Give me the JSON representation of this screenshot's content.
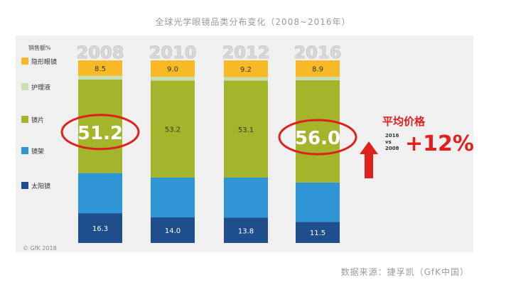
{
  "title": "全球光学眼镜品类分布变化（2008~2016年）",
  "source": "数据来源：捷孚凯（GfK中国）",
  "copyright": "© GfK 2018",
  "chart_data": {
    "type": "bar",
    "stacked": true,
    "ylabel": "销售额%",
    "categories": [
      "2008",
      "2010",
      "2012",
      "2016"
    ],
    "series": [
      {
        "name": "太阳镜",
        "color": "#1f4e8c",
        "values": [
          16.3,
          14.0,
          13.8,
          11.5
        ]
      },
      {
        "name": "镜架",
        "color": "#2f95d4",
        "values": [
          22.0,
          21.8,
          22.0,
          21.6
        ]
      },
      {
        "name": "镜片",
        "color": "#a4b42b",
        "values": [
          51.2,
          53.2,
          53.1,
          56.0
        ]
      },
      {
        "name": "护理液",
        "color": "#c6e0b4",
        "values": [
          2.0,
          2.0,
          1.9,
          2.0
        ]
      },
      {
        "name": "隐形眼镜",
        "color": "#f7b925",
        "values": [
          8.5,
          9.0,
          9.2,
          8.9
        ]
      }
    ],
    "value_labels": {
      "隐形眼镜": [
        "8.5",
        "9.0",
        "9.2",
        "8.9"
      ],
      "镜片": [
        "51.2",
        "53.2",
        "53.1",
        "56.0"
      ],
      "太阳镜": [
        "16.3",
        "14.0",
        "13.8",
        "11.5"
      ]
    },
    "highlighted": [
      {
        "series": "镜片",
        "category": "2008"
      },
      {
        "series": "镜片",
        "category": "2016"
      }
    ],
    "legend_position": "left",
    "ylim": [
      0,
      100
    ],
    "annotation": {
      "title": "平均价格",
      "comparison": [
        "2016",
        "vs",
        "2008"
      ],
      "change": "+12%",
      "color": "#e0201b"
    }
  }
}
